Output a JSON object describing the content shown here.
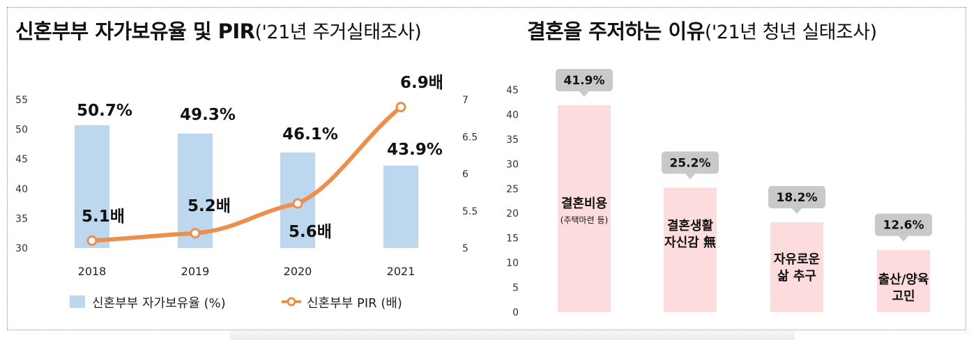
{
  "left_title": {
    "main": "신혼부부 자가보유율 및 PIR",
    "sub": "('21년 주거실태조사)"
  },
  "right_title": {
    "main": "결혼을 주저하는 이유",
    "sub": "('21년 청년 실태조사)"
  },
  "chart_data": [
    {
      "type": "bar",
      "categories": [
        "2018",
        "2019",
        "2020",
        "2021"
      ],
      "series": [
        {
          "name": "신혼부부 자가보유율 (%)",
          "type": "bar",
          "axis": "left",
          "values": [
            50.7,
            49.3,
            46.1,
            43.9
          ],
          "labels": [
            "50.7%",
            "49.3%",
            "46.1%",
            "43.9%"
          ],
          "color": "#bdd7ee"
        },
        {
          "name": "신혼부부 PIR (배)",
          "type": "line",
          "axis": "right",
          "values": [
            5.1,
            5.2,
            5.6,
            6.9
          ],
          "labels": [
            "5.1배",
            "5.2배",
            "5.6배",
            "6.9배"
          ],
          "color": "#ed8f4c"
        }
      ],
      "y_left": {
        "min": 30,
        "max": 55,
        "ticks": [
          "30",
          "35",
          "40",
          "45",
          "50",
          "55"
        ]
      },
      "y_right": {
        "min": 5,
        "max": 7,
        "ticks": [
          "5",
          "5.5",
          "6",
          "6.5",
          "7"
        ]
      },
      "legend_placement": "bottom"
    },
    {
      "type": "bar",
      "categories": [
        {
          "lines": [
            "결혼비용"
          ],
          "note": "(주택마련 등)"
        },
        {
          "lines": [
            "결혼생활",
            "자신감 無"
          ],
          "note": ""
        },
        {
          "lines": [
            "자유로운",
            "삶 추구"
          ],
          "note": ""
        },
        {
          "lines": [
            "출산/양육",
            "고민"
          ],
          "note": ""
        }
      ],
      "values": [
        41.9,
        25.2,
        18.2,
        12.6
      ],
      "labels": [
        "41.9%",
        "25.2%",
        "18.2%",
        "12.6%"
      ],
      "color": "#fcdcdc",
      "callout_color": "#c9c9c9",
      "y": {
        "min": 0,
        "max": 45,
        "ticks": [
          "0",
          "5",
          "10",
          "15",
          "20",
          "25",
          "30",
          "35",
          "40",
          "45"
        ]
      }
    }
  ]
}
